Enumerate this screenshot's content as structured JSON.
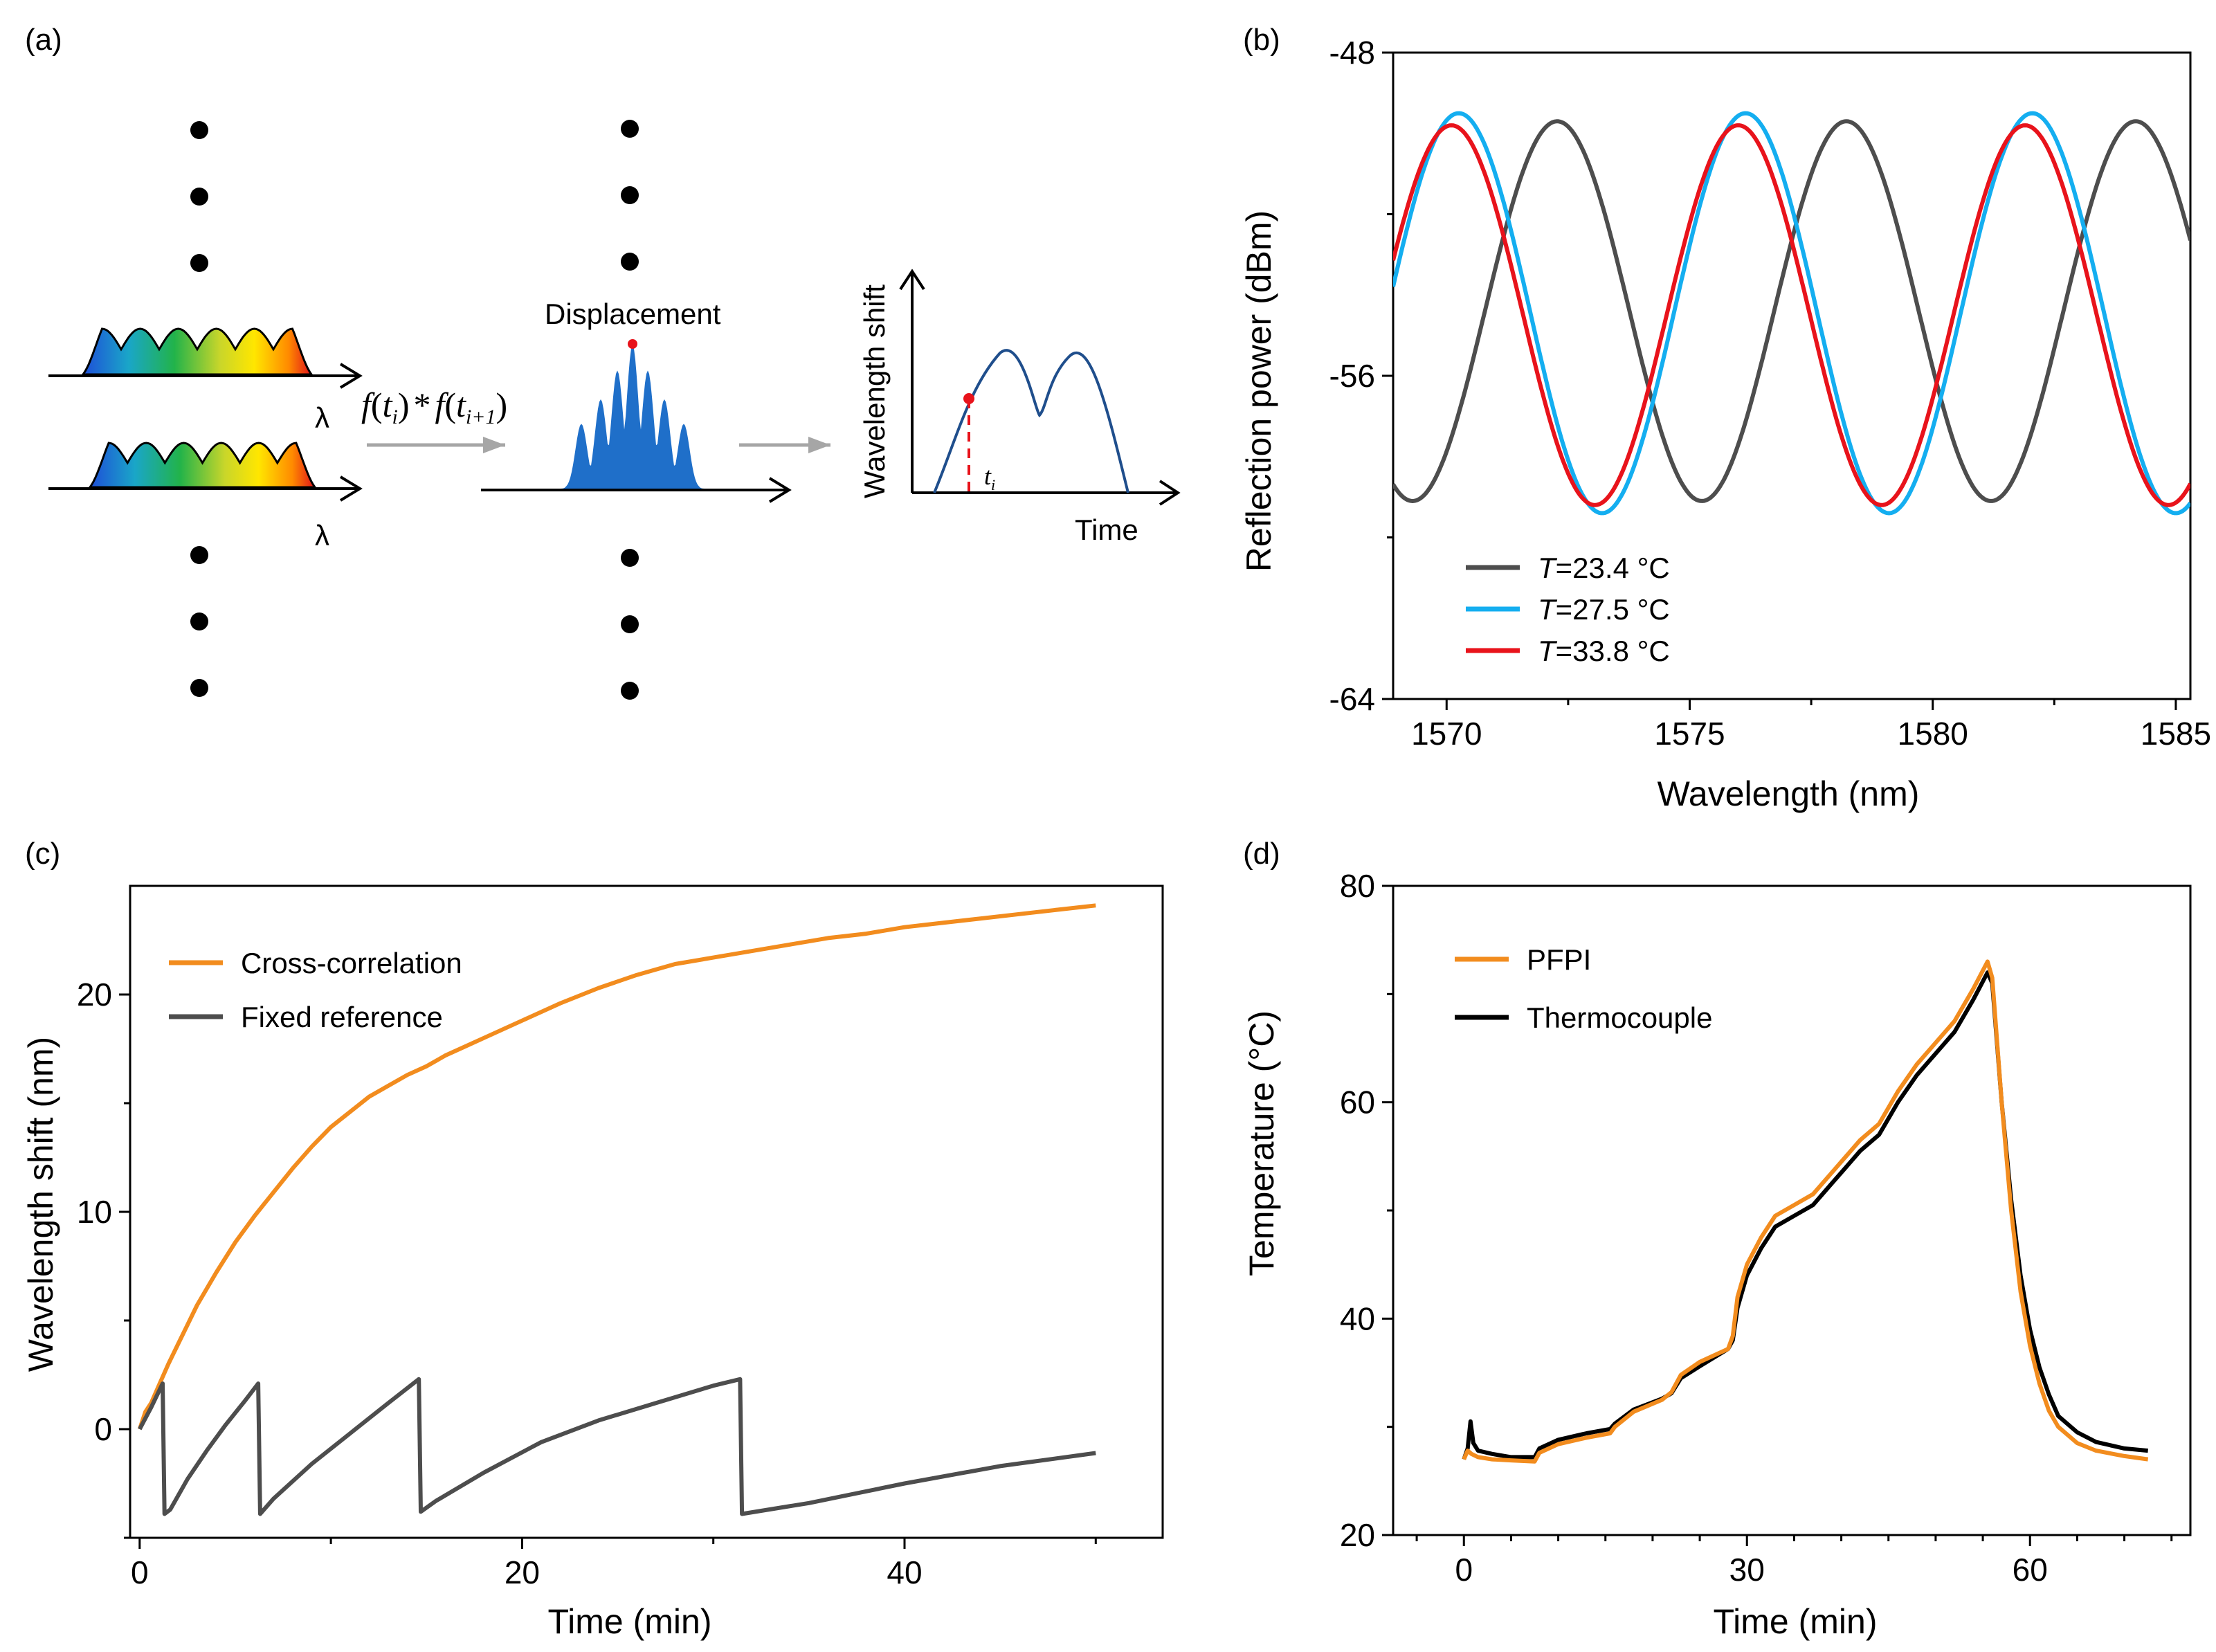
{
  "panel_labels": [
    "(a)",
    "(b)",
    "(c)",
    "(d)"
  ],
  "schematic": {
    "lambda_top": "λ",
    "lambda_bottom": "λ",
    "formula": {
      "f1": "f",
      "open1": "(",
      "t1": "t",
      "sub1": "i",
      "close1": ")",
      "star": "*",
      "f2": "f",
      "open2": "(",
      "t2": "t",
      "sub2": "i+1",
      "close2": ")"
    },
    "displacement_label": "Displacement",
    "inset_ylabel": "Wavelength shift",
    "inset_xlabel": "Time",
    "inset_marker_t": "t",
    "inset_marker_sub": "i",
    "colors": {
      "dot": "#000000",
      "peak_fill": "#1f6fc9",
      "arrow_gray": "#a6a6a6",
      "curve": "#1f4e8c",
      "marker": "#e8131b"
    },
    "icons": [
      "ellipsis-dots",
      "spectrum-comb",
      "arrow-right",
      "correlation-peak",
      "time-trace"
    ]
  },
  "chart_data": [
    {
      "id": "b",
      "type": "line",
      "xlabel": "Wavelength (nm)",
      "ylabel": "Reflection power (dBm)",
      "xlim": [
        1568.9,
        1585.3
      ],
      "ylim": [
        -64,
        -48
      ],
      "xticks": [
        1570,
        1575,
        1580,
        1585
      ],
      "xtick_labels": [
        "1570",
        "1575",
        "1580",
        "1585"
      ],
      "yticks": [
        -48,
        -56,
        -64
      ],
      "ytick_labels": [
        "-48",
        "-56",
        "-64"
      ],
      "legend": {
        "position": "bottom-left",
        "entries": [
          {
            "prefix": "T",
            "label": "=23.4 °C",
            "color": "#4d4d4d"
          },
          {
            "prefix": "T",
            "label": "=27.5 °C",
            "color": "#14aef0"
          },
          {
            "prefix": "T",
            "label": "=33.8 °C",
            "color": "#e8131b"
          }
        ]
      },
      "series": [
        {
          "name": "T=23.4 °C",
          "color": "#4d4d4d",
          "kind": "cosine",
          "min": -59.1,
          "max": -49.7,
          "troughs": [
            1569.3,
            1575.25,
            1581.25
          ]
        },
        {
          "name": "T=27.5 °C",
          "color": "#14aef0",
          "kind": "cosine",
          "min": -59.4,
          "max": -49.5,
          "troughs": [
            1573.2,
            1579.1,
            1585.1
          ]
        },
        {
          "name": "T=33.8 °C",
          "color": "#e8131b",
          "kind": "cosine",
          "min": -59.2,
          "max": -49.8,
          "troughs": [
            1573.05,
            1578.95,
            1584.9
          ]
        }
      ]
    },
    {
      "id": "c",
      "type": "line",
      "xlabel": "Time (min)",
      "ylabel": "Wavelength shift (nm)",
      "xlim": [
        -0.5,
        53.5
      ],
      "ylim": [
        -5,
        25
      ],
      "xticks": [
        0,
        20,
        40
      ],
      "xtick_labels": [
        "0",
        "20",
        "40"
      ],
      "yticks": [
        0,
        10,
        20
      ],
      "ytick_labels": [
        "0",
        "10",
        "20"
      ],
      "legend": {
        "position": "top-left",
        "entries": [
          {
            "label": "Cross-correlation",
            "color": "#f28c1e"
          },
          {
            "label": "Fixed reference",
            "color": "#4d4d4d"
          }
        ]
      },
      "series": [
        {
          "name": "Cross-correlation",
          "color": "#f28c1e",
          "x": [
            0,
            0.3,
            0.6,
            1,
            1.5,
            2,
            2.5,
            3,
            4,
            5,
            6,
            7,
            8,
            9,
            10,
            11,
            12,
            13,
            14,
            15,
            16,
            17,
            18,
            20,
            22,
            24,
            26,
            28,
            30,
            32,
            34,
            36,
            38,
            40,
            42,
            44,
            46,
            48,
            50
          ],
          "y": [
            0,
            0.8,
            1.2,
            2.0,
            3.0,
            3.9,
            4.8,
            5.7,
            7.2,
            8.6,
            9.8,
            10.9,
            12.0,
            13.0,
            13.9,
            14.6,
            15.3,
            15.8,
            16.3,
            16.7,
            17.2,
            17.6,
            18.0,
            18.8,
            19.6,
            20.3,
            20.9,
            21.4,
            21.7,
            22.0,
            22.3,
            22.6,
            22.8,
            23.1,
            23.3,
            23.5,
            23.7,
            23.9,
            24.1
          ]
        },
        {
          "name": "Fixed reference",
          "color": "#4d4d4d",
          "x": [
            0,
            0.6,
            1.2,
            1.3,
            1.6,
            2.5,
            3.5,
            4.5,
            5.5,
            6.2,
            6.3,
            7,
            9,
            11,
            13,
            14.6,
            14.7,
            15.5,
            18,
            21,
            24,
            27,
            30,
            31.4,
            31.5,
            35,
            40,
            45,
            50
          ],
          "y": [
            0,
            1.0,
            2.1,
            -3.9,
            -3.7,
            -2.3,
            -1.0,
            0.2,
            1.3,
            2.1,
            -3.9,
            -3.2,
            -1.6,
            -0.2,
            1.2,
            2.3,
            -3.8,
            -3.3,
            -2.0,
            -0.6,
            0.4,
            1.2,
            2.0,
            2.3,
            -3.9,
            -3.4,
            -2.5,
            -1.7,
            -1.1
          ]
        }
      ]
    },
    {
      "id": "d",
      "type": "line",
      "xlabel": "Time (min)",
      "ylabel": "Temperature (°C)",
      "xlim": [
        -7.5,
        77
      ],
      "ylim": [
        20,
        80
      ],
      "xticks": [
        0,
        30,
        60
      ],
      "xtick_labels": [
        "0",
        "30",
        "60"
      ],
      "yticks": [
        20,
        40,
        60,
        80
      ],
      "ytick_labels": [
        "20",
        "40",
        "60",
        "80"
      ],
      "legend": {
        "position": "top-left",
        "entries": [
          {
            "label": "PFPI",
            "color": "#f28c1e"
          },
          {
            "label": "Thermocouple",
            "color": "#000000"
          }
        ]
      },
      "series": [
        {
          "name": "Thermocouple",
          "color": "#000000",
          "x": [
            0,
            0.4,
            0.7,
            1,
            1.5,
            3,
            5,
            7.5,
            8,
            10,
            13,
            15.5,
            16,
            18,
            21,
            22,
            23,
            25,
            28,
            28.5,
            29,
            30,
            31.5,
            33,
            35,
            37,
            39,
            41,
            42,
            44,
            46,
            48,
            50,
            52,
            54,
            55.5,
            56,
            57,
            58,
            59,
            60,
            61,
            62,
            63,
            65,
            67,
            70,
            72.5
          ],
          "y": [
            27,
            28,
            30.5,
            28.5,
            27.8,
            27.5,
            27.2,
            27.2,
            28.0,
            28.8,
            29.4,
            29.8,
            30.3,
            31.6,
            32.6,
            33.1,
            34.5,
            35.6,
            37.2,
            38.0,
            41.0,
            44.0,
            46.5,
            48.5,
            49.5,
            50.5,
            52.5,
            54.5,
            55.5,
            57.0,
            60.0,
            62.5,
            64.5,
            66.5,
            69.5,
            72.0,
            71.0,
            60.0,
            51.0,
            44.0,
            39.0,
            35.5,
            33.0,
            31.0,
            29.5,
            28.6,
            28.0,
            27.8
          ]
        },
        {
          "name": "PFPI",
          "color": "#f28c1e",
          "x": [
            0,
            0.4,
            0.8,
            1.5,
            3,
            5,
            7.5,
            8,
            10,
            13,
            15.5,
            16,
            18,
            21,
            22,
            23,
            25,
            28,
            28.5,
            29,
            30,
            31.5,
            33,
            35,
            37,
            39,
            41,
            42,
            44,
            46,
            48,
            50,
            52,
            54,
            55.5,
            56,
            57,
            58,
            59,
            60,
            61,
            62,
            63,
            65,
            67,
            70,
            72.5
          ],
          "y": [
            27,
            27.8,
            27.5,
            27.2,
            27.0,
            26.9,
            26.8,
            27.6,
            28.4,
            29.0,
            29.4,
            30.0,
            31.4,
            32.5,
            33.2,
            34.8,
            36.0,
            37.2,
            38.4,
            42.0,
            45.0,
            47.5,
            49.5,
            50.5,
            51.5,
            53.5,
            55.5,
            56.5,
            58.0,
            61.0,
            63.5,
            65.5,
            67.5,
            70.5,
            73.0,
            71.5,
            60.0,
            50.0,
            42.5,
            37.5,
            34.0,
            31.5,
            30.0,
            28.5,
            27.8,
            27.3,
            27.0
          ]
        }
      ]
    }
  ]
}
